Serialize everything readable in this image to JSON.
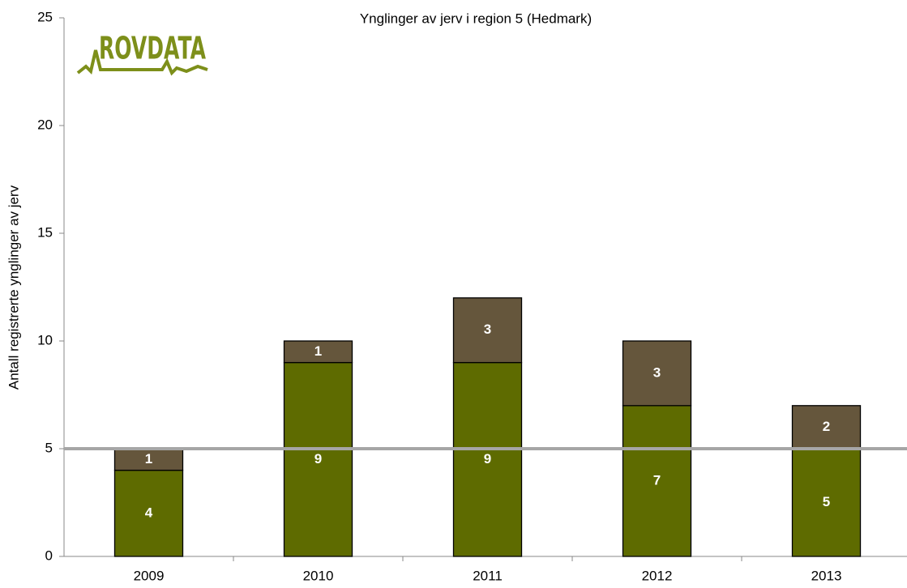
{
  "chart_data": {
    "type": "stacked_bar",
    "title": "Ynglinger av jerv i region 5 (Hedmark)",
    "logo": "ROVDATA",
    "y_label": "Antall registrerte ynglinger av jerv",
    "categories": [
      "2009",
      "2010",
      "2011",
      "2012",
      "2013"
    ],
    "series": [
      {
        "color": "#5e6b00",
        "values": [
          4,
          9,
          9,
          7,
          5
        ]
      },
      {
        "color": "#65563c",
        "values": [
          1,
          1,
          3,
          3,
          2
        ]
      }
    ],
    "reference_line": {
      "value": 5,
      "color": "#a6a6a6"
    },
    "ylim": [
      0,
      25
    ],
    "yticks": [
      0,
      5,
      10,
      15,
      20,
      25
    ]
  }
}
